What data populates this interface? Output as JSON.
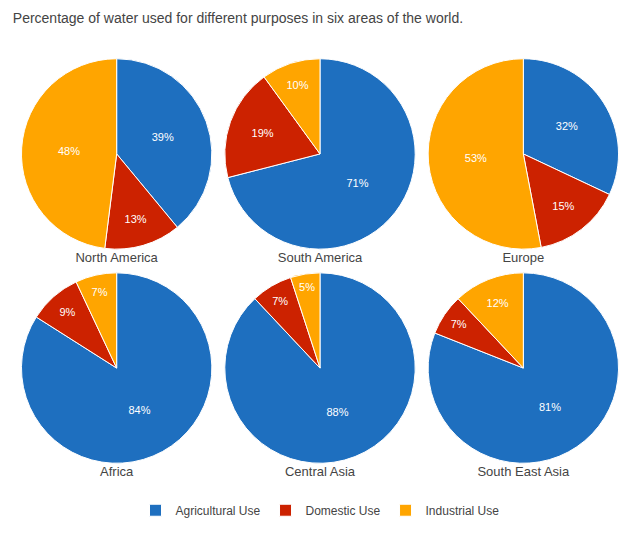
{
  "title": "Percentage of water used for different purposes in six areas of the world.",
  "legend": "bottom",
  "chart_data": [
    {
      "type": "pie",
      "title": "North America",
      "categories": [
        "Agricultural Use",
        "Domestic Use",
        "Industrial Use"
      ],
      "values": [
        39,
        13,
        48
      ],
      "value_labels": [
        "39%",
        "13%",
        "48%"
      ],
      "colors": [
        "#1E6FBF",
        "#CC2200",
        "#FFA500"
      ],
      "data_labels": true
    },
    {
      "type": "pie",
      "title": "South America",
      "categories": [
        "Agricultural Use",
        "Domestic Use",
        "Industrial Use"
      ],
      "values": [
        71,
        19,
        10
      ],
      "value_labels": [
        "71%",
        "19%",
        "10%"
      ],
      "colors": [
        "#1E6FBF",
        "#CC2200",
        "#FFA500"
      ],
      "data_labels": true
    },
    {
      "type": "pie",
      "title": "Europe",
      "categories": [
        "Agricultural Use",
        "Domestic Use",
        "Industrial Use"
      ],
      "values": [
        32,
        15,
        53
      ],
      "value_labels": [
        "32%",
        "15%",
        "53%"
      ],
      "colors": [
        "#1E6FBF",
        "#CC2200",
        "#FFA500"
      ],
      "data_labels": true
    },
    {
      "type": "pie",
      "title": "Africa",
      "categories": [
        "Agricultural Use",
        "Domestic Use",
        "Industrial Use"
      ],
      "values": [
        84,
        9,
        7
      ],
      "value_labels": [
        "84%",
        "9%",
        "7%"
      ],
      "colors": [
        "#1E6FBF",
        "#CC2200",
        "#FFA500"
      ],
      "data_labels": true
    },
    {
      "type": "pie",
      "title": "Central Asia",
      "categories": [
        "Agricultural Use",
        "Domestic Use",
        "Industrial Use"
      ],
      "values": [
        88,
        7,
        5
      ],
      "value_labels": [
        "88%",
        "7%",
        "5%"
      ],
      "colors": [
        "#1E6FBF",
        "#CC2200",
        "#FFA500"
      ],
      "data_labels": true
    },
    {
      "type": "pie",
      "title": "South East Asia",
      "categories": [
        "Agricultural Use",
        "Domestic Use",
        "Industrial Use"
      ],
      "values": [
        81,
        7,
        12
      ],
      "value_labels": [
        "81%",
        "7%",
        "12%"
      ],
      "colors": [
        "#1E6FBF",
        "#CC2200",
        "#FFA500"
      ],
      "data_labels": true
    }
  ]
}
